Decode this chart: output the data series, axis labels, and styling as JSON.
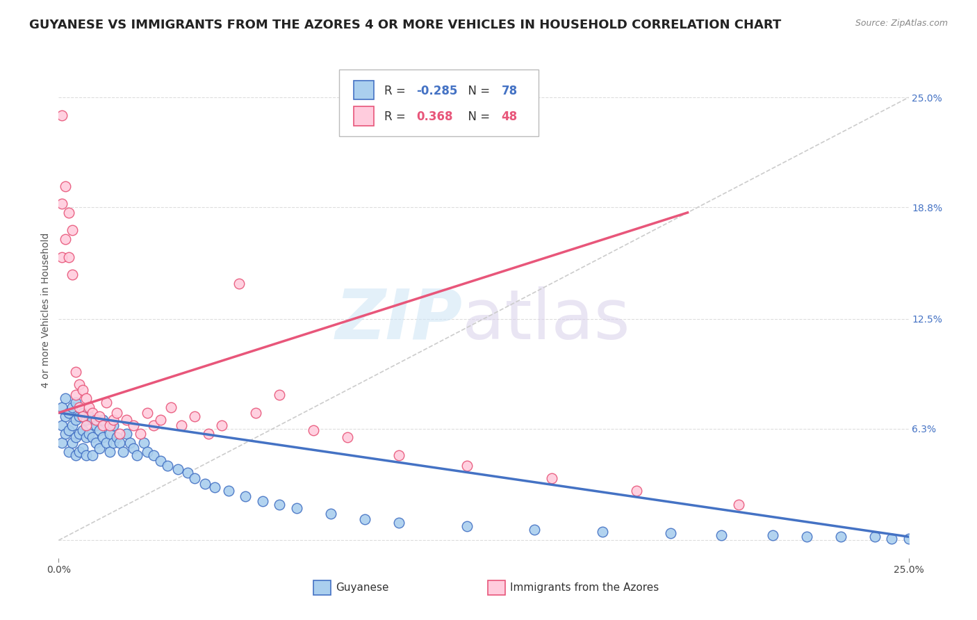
{
  "title": "GUYANESE VS IMMIGRANTS FROM THE AZORES 4 OR MORE VEHICLES IN HOUSEHOLD CORRELATION CHART",
  "source": "Source: ZipAtlas.com",
  "ylabel": "4 or more Vehicles in Household",
  "xmin": 0.0,
  "xmax": 0.25,
  "ymin": -0.01,
  "ymax": 0.27,
  "series": [
    {
      "name": "Guyanese",
      "R": -0.285,
      "N": 78,
      "color": "#aacfee",
      "edge_color": "#4472c4",
      "x": [
        0.001,
        0.001,
        0.001,
        0.002,
        0.002,
        0.002,
        0.003,
        0.003,
        0.003,
        0.004,
        0.004,
        0.004,
        0.005,
        0.005,
        0.005,
        0.005,
        0.006,
        0.006,
        0.006,
        0.007,
        0.007,
        0.007,
        0.008,
        0.008,
        0.008,
        0.009,
        0.009,
        0.01,
        0.01,
        0.01,
        0.011,
        0.011,
        0.012,
        0.012,
        0.013,
        0.013,
        0.014,
        0.015,
        0.015,
        0.016,
        0.016,
        0.017,
        0.018,
        0.019,
        0.02,
        0.021,
        0.022,
        0.023,
        0.025,
        0.026,
        0.028,
        0.03,
        0.032,
        0.035,
        0.038,
        0.04,
        0.043,
        0.046,
        0.05,
        0.055,
        0.06,
        0.065,
        0.07,
        0.08,
        0.09,
        0.1,
        0.12,
        0.14,
        0.16,
        0.18,
        0.195,
        0.21,
        0.22,
        0.23,
        0.24,
        0.245,
        0.25,
        0.255
      ],
      "y": [
        0.075,
        0.065,
        0.055,
        0.08,
        0.07,
        0.06,
        0.072,
        0.062,
        0.05,
        0.075,
        0.065,
        0.055,
        0.078,
        0.068,
        0.058,
        0.048,
        0.07,
        0.06,
        0.05,
        0.072,
        0.062,
        0.052,
        0.068,
        0.058,
        0.048,
        0.07,
        0.06,
        0.068,
        0.058,
        0.048,
        0.065,
        0.055,
        0.062,
        0.052,
        0.068,
        0.058,
        0.055,
        0.06,
        0.05,
        0.065,
        0.055,
        0.058,
        0.055,
        0.05,
        0.06,
        0.055,
        0.052,
        0.048,
        0.055,
        0.05,
        0.048,
        0.045,
        0.042,
        0.04,
        0.038,
        0.035,
        0.032,
        0.03,
        0.028,
        0.025,
        0.022,
        0.02,
        0.018,
        0.015,
        0.012,
        0.01,
        0.008,
        0.006,
        0.005,
        0.004,
        0.003,
        0.003,
        0.002,
        0.002,
        0.002,
        0.001,
        0.001,
        0.001
      ]
    },
    {
      "name": "Immigrants from the Azores",
      "R": 0.368,
      "N": 48,
      "color": "#ffccdd",
      "edge_color": "#e8567a",
      "x": [
        0.001,
        0.001,
        0.001,
        0.002,
        0.002,
        0.003,
        0.003,
        0.004,
        0.004,
        0.005,
        0.005,
        0.006,
        0.006,
        0.007,
        0.007,
        0.008,
        0.008,
        0.009,
        0.01,
        0.011,
        0.012,
        0.013,
        0.014,
        0.015,
        0.016,
        0.017,
        0.018,
        0.02,
        0.022,
        0.024,
        0.026,
        0.028,
        0.03,
        0.033,
        0.036,
        0.04,
        0.044,
        0.048,
        0.053,
        0.058,
        0.065,
        0.075,
        0.085,
        0.1,
        0.12,
        0.145,
        0.17,
        0.2
      ],
      "y": [
        0.24,
        0.19,
        0.16,
        0.2,
        0.17,
        0.185,
        0.16,
        0.175,
        0.15,
        0.095,
        0.082,
        0.088,
        0.075,
        0.085,
        0.07,
        0.08,
        0.065,
        0.075,
        0.072,
        0.068,
        0.07,
        0.065,
        0.078,
        0.065,
        0.068,
        0.072,
        0.06,
        0.068,
        0.065,
        0.06,
        0.072,
        0.065,
        0.068,
        0.075,
        0.065,
        0.07,
        0.06,
        0.065,
        0.145,
        0.072,
        0.082,
        0.062,
        0.058,
        0.048,
        0.042,
        0.035,
        0.028,
        0.02
      ]
    }
  ],
  "trend_line_blue": {
    "x_start": 0.0,
    "x_end": 0.25,
    "y_start": 0.072,
    "y_end": 0.002
  },
  "trend_line_pink": {
    "x_start": 0.0,
    "x_end": 0.185,
    "y_start": 0.072,
    "y_end": 0.185
  },
  "trend_line_gray": {
    "x_start": 0.0,
    "x_end": 0.25,
    "y_start": 0.0,
    "y_end": 0.25
  },
  "background_color": "#ffffff",
  "grid_color": "#dddddd",
  "title_fontsize": 13,
  "axis_label_fontsize": 10,
  "tick_fontsize": 10
}
